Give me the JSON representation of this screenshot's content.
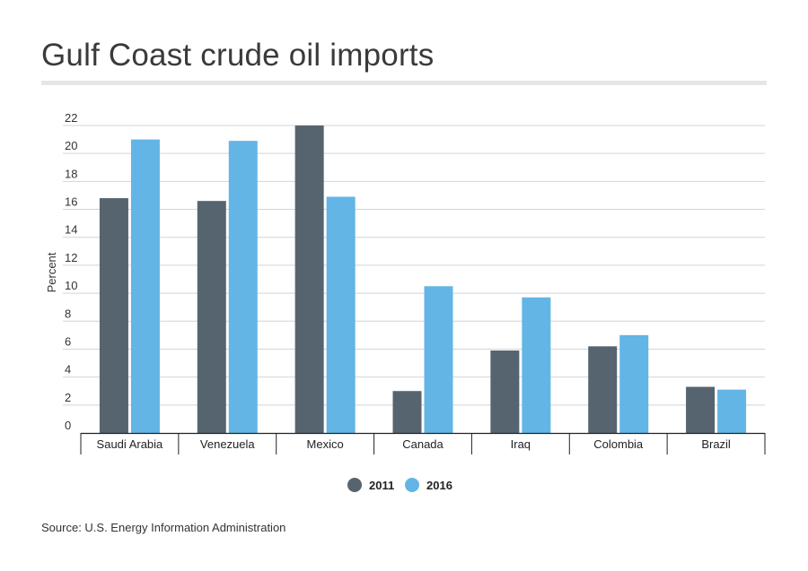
{
  "chart_data": {
    "type": "bar",
    "title": "Gulf Coast crude oil imports",
    "ylabel": "Percent",
    "xlabel": "",
    "ylim": [
      0,
      22
    ],
    "yticks": [
      0,
      2,
      4,
      6,
      8,
      10,
      12,
      14,
      16,
      18,
      20,
      22
    ],
    "grid": true,
    "legend": "bottom-center",
    "categories": [
      "Saudi Arabia",
      "Venezuela",
      "Mexico",
      "Canada",
      "Iraq",
      "Colombia",
      "Brazil"
    ],
    "series": [
      {
        "name": "2011",
        "color": "#56646f",
        "values": [
          16.8,
          16.6,
          22.0,
          3.0,
          5.9,
          6.2,
          3.3
        ]
      },
      {
        "name": "2016",
        "color": "#63b5e5",
        "values": [
          21.0,
          20.9,
          16.9,
          10.5,
          9.7,
          7.0,
          3.1
        ]
      }
    ],
    "source": "Source: U.S. Energy Information Administration"
  }
}
